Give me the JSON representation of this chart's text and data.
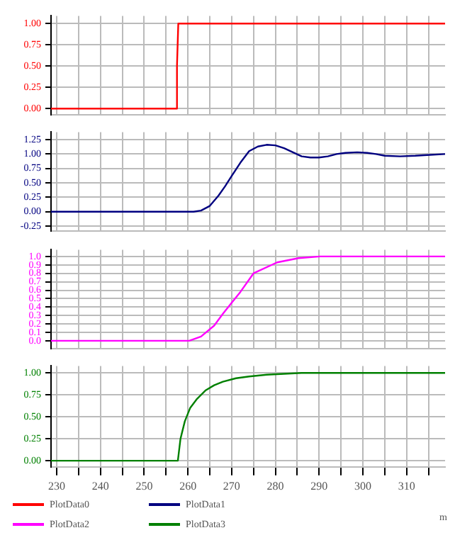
{
  "chart_data": [
    {
      "type": "line",
      "series": [
        {
          "name": "PlotData0",
          "color": "#ff0000",
          "x": [
            228.7,
            257.4,
            257.5,
            257.8,
            318.8
          ],
          "values": [
            0,
            0,
            0.5,
            1,
            1
          ]
        }
      ],
      "xlim": [
        228.7,
        318.8
      ],
      "xticks": [
        230,
        {
          "value": 235,
          "label": null
        },
        240,
        {
          "value": 245,
          "label": null
        },
        250,
        {
          "value": 255,
          "label": null
        },
        260,
        {
          "value": 265,
          "label": null
        },
        270,
        {
          "value": 275,
          "label": null
        },
        280,
        {
          "value": 285,
          "label": null
        },
        290,
        {
          "value": 295,
          "label": null
        },
        300,
        {
          "value": 305,
          "label": null
        },
        310,
        {
          "value": 315,
          "label": null
        }
      ],
      "ylim": [
        -0.07,
        1.09
      ],
      "yticks": [
        {
          "value": 0,
          "label": "0.00"
        },
        0.25,
        {
          "value": 0.5,
          "label": "0.50"
        },
        0.75,
        {
          "value": 1,
          "label": "1.00"
        }
      ],
      "grid": true,
      "tick_labels": "y",
      "marker": "none",
      "line_style": "solid",
      "legend": "bottom"
    },
    {
      "type": "line",
      "series": [
        {
          "name": "PlotData1",
          "color": "#000080",
          "x": [
            228.7,
            261.3,
            263,
            265,
            267,
            268.5,
            270,
            272,
            274,
            276,
            278,
            280,
            282,
            284,
            286,
            288,
            290,
            292,
            294,
            296,
            298.7,
            301,
            303,
            305,
            308.5,
            312,
            314,
            318.8
          ],
          "values": [
            0,
            0,
            0.02,
            0.1,
            0.28,
            0.44,
            0.62,
            0.85,
            1.05,
            1.13,
            1.16,
            1.15,
            1.1,
            1.03,
            0.96,
            0.94,
            0.94,
            0.96,
            1.0,
            1.02,
            1.03,
            1.02,
            1.0,
            0.97,
            0.96,
            0.97,
            0.98,
            1.0
          ]
        }
      ],
      "xlim": [
        228.7,
        318.8
      ],
      "xticks": [
        230,
        {
          "value": 235,
          "label": null
        },
        240,
        {
          "value": 245,
          "label": null
        },
        250,
        {
          "value": 255,
          "label": null
        },
        260,
        {
          "value": 265,
          "label": null
        },
        270,
        {
          "value": 275,
          "label": null
        },
        280,
        {
          "value": 285,
          "label": null
        },
        290,
        {
          "value": 295,
          "label": null
        },
        300,
        {
          "value": 305,
          "label": null
        },
        310,
        {
          "value": 315,
          "label": null
        }
      ],
      "ylim": [
        -0.33,
        1.38
      ],
      "yticks": [
        -0.25,
        {
          "value": 0,
          "label": "0.00"
        },
        0.25,
        {
          "value": 0.5,
          "label": "0.50"
        },
        0.75,
        {
          "value": 1,
          "label": "1.00"
        },
        1.25
      ],
      "grid": true,
      "tick_labels": "y",
      "marker": "none",
      "line_style": "solid",
      "legend": "bottom"
    },
    {
      "type": "line",
      "series": [
        {
          "name": "PlotData2",
          "color": "#ff00ff",
          "x": [
            228.7,
            260.3,
            263,
            266,
            268,
            270,
            272,
            275,
            280.4,
            285.3,
            290.2,
            318.8
          ],
          "values": [
            0,
            0,
            0.05,
            0.18,
            0.32,
            0.45,
            0.58,
            0.8,
            0.93,
            0.98,
            1.0,
            1.0
          ]
        }
      ],
      "xlim": [
        228.7,
        318.8
      ],
      "xticks": [
        230,
        {
          "value": 235,
          "label": null
        },
        240,
        {
          "value": 245,
          "label": null
        },
        250,
        {
          "value": 255,
          "label": null
        },
        260,
        {
          "value": 265,
          "label": null
        },
        270,
        {
          "value": 275,
          "label": null
        },
        280,
        {
          "value": 285,
          "label": null
        },
        290,
        {
          "value": 295,
          "label": null
        },
        300,
        {
          "value": 305,
          "label": null
        },
        310,
        {
          "value": 315,
          "label": null
        }
      ],
      "ylim": [
        -0.09,
        1.08
      ],
      "yticks": [
        {
          "value": 0,
          "label": "0.0"
        },
        0.1,
        0.2,
        0.3,
        0.4,
        0.5,
        0.6,
        0.7,
        0.8,
        0.9,
        {
          "value": 1,
          "label": "1.0"
        }
      ],
      "grid": true,
      "tick_labels": "y",
      "marker": "none",
      "line_style": "solid",
      "legend": "bottom"
    },
    {
      "type": "line",
      "xlabel": "m",
      "series": [
        {
          "name": "PlotData3",
          "color": "#008000",
          "x": [
            228.7,
            257.7,
            258.3,
            259.3,
            260.5,
            262,
            264,
            266,
            268,
            271,
            274,
            278,
            282,
            286,
            318.8
          ],
          "values": [
            0,
            0,
            0.25,
            0.45,
            0.6,
            0.7,
            0.8,
            0.86,
            0.9,
            0.94,
            0.96,
            0.98,
            0.99,
            1.0,
            1.0
          ]
        }
      ],
      "xlim": [
        228.7,
        318.8
      ],
      "xticks": [
        230,
        {
          "value": 235,
          "label": null
        },
        240,
        {
          "value": 245,
          "label": null
        },
        250,
        {
          "value": 255,
          "label": null
        },
        260,
        {
          "value": 265,
          "label": null
        },
        270,
        {
          "value": 275,
          "label": null
        },
        280,
        {
          "value": 285,
          "label": null
        },
        290,
        {
          "value": 295,
          "label": null
        },
        300,
        {
          "value": 305,
          "label": null
        },
        310,
        {
          "value": 315,
          "label": null
        }
      ],
      "ylim": [
        -0.07,
        1.08
      ],
      "yticks": [
        {
          "value": 0,
          "label": "0.00"
        },
        0.25,
        {
          "value": 0.5,
          "label": "0.50"
        },
        0.75,
        {
          "value": 1,
          "label": "1.00"
        }
      ],
      "grid": true,
      "marker": "none",
      "line_style": "solid",
      "legend": "bottom"
    }
  ]
}
